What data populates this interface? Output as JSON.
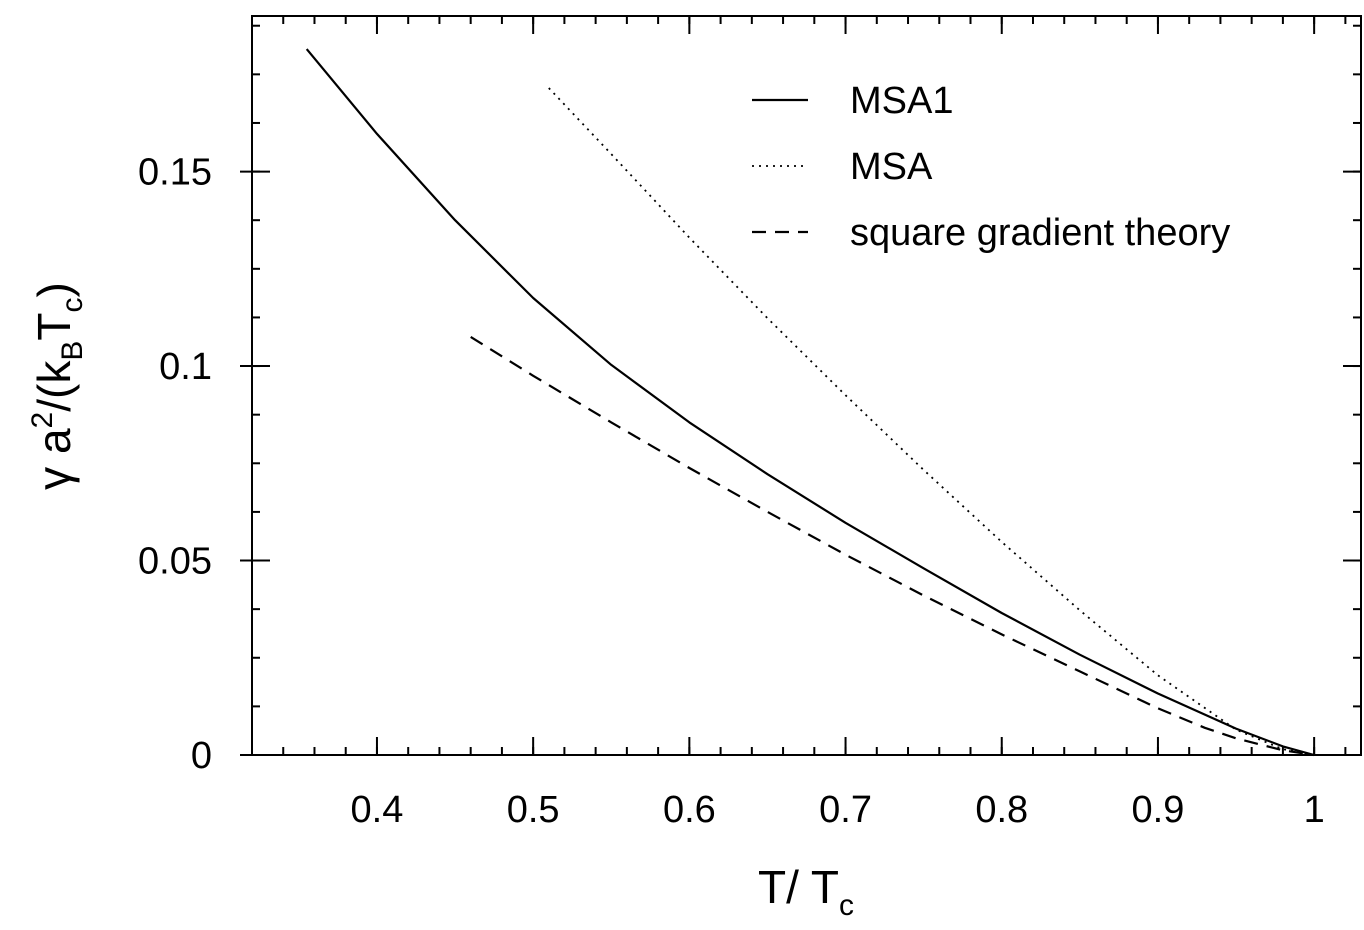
{
  "chart_data": {
    "type": "line",
    "title": "",
    "xlabel": {
      "main": "T/ T",
      "sub": "c"
    },
    "ylabel": {
      "pre": "γ a",
      "sup": "2",
      "mid": "/(k",
      "sub1": "B",
      "mid2": "T",
      "sub2": "c",
      "post": ")"
    },
    "xlim": [
      0.32,
      1.03
    ],
    "ylim": [
      0,
      0.19
    ],
    "x_ticks": [
      {
        "value": 0.4,
        "label": "0.4"
      },
      {
        "value": 0.5,
        "label": "0.5"
      },
      {
        "value": 0.6,
        "label": "0.6"
      },
      {
        "value": 0.7,
        "label": "0.7"
      },
      {
        "value": 0.8,
        "label": "0.8"
      },
      {
        "value": 0.9,
        "label": "0.9"
      },
      {
        "value": 1.0,
        "label": "1"
      }
    ],
    "y_ticks": [
      {
        "value": 0,
        "label": "0"
      },
      {
        "value": 0.05,
        "label": "0.05"
      },
      {
        "value": 0.1,
        "label": "0.1"
      },
      {
        "value": 0.15,
        "label": "0.15"
      }
    ],
    "x_minor_step": 0.02,
    "y_minor_step": 0.0125,
    "grid": false,
    "legend_position": "top-right",
    "series": [
      {
        "name": "MSA1",
        "style": "solid",
        "x": [
          0.355,
          0.4,
          0.45,
          0.5,
          0.55,
          0.6,
          0.65,
          0.7,
          0.75,
          0.8,
          0.85,
          0.9,
          0.95,
          0.98,
          1.0
        ],
        "y": [
          0.1815,
          0.1597,
          0.1375,
          0.1175,
          0.1003,
          0.0855,
          0.0722,
          0.0597,
          0.048,
          0.0365,
          0.0258,
          0.0158,
          0.0068,
          0.0022,
          0.0
        ]
      },
      {
        "name": "MSA",
        "style": "dotted",
        "x": [
          0.51,
          0.55,
          0.6,
          0.65,
          0.7,
          0.75,
          0.8,
          0.85,
          0.9,
          0.95,
          0.98,
          1.0
        ],
        "y": [
          0.1715,
          0.1545,
          0.133,
          0.1123,
          0.0925,
          0.0733,
          0.0548,
          0.0372,
          0.0205,
          0.0065,
          0.0015,
          0.0
        ]
      },
      {
        "name": "square gradient theory",
        "style": "dashed",
        "x": [
          0.46,
          0.5,
          0.55,
          0.6,
          0.65,
          0.7,
          0.75,
          0.8,
          0.85,
          0.9,
          0.93,
          0.95,
          0.98,
          1.0
        ],
        "y": [
          0.1075,
          0.0975,
          0.0855,
          0.0738,
          0.0625,
          0.0515,
          0.041,
          0.031,
          0.0215,
          0.012,
          0.007,
          0.0043,
          0.0012,
          0.0
        ]
      }
    ]
  }
}
